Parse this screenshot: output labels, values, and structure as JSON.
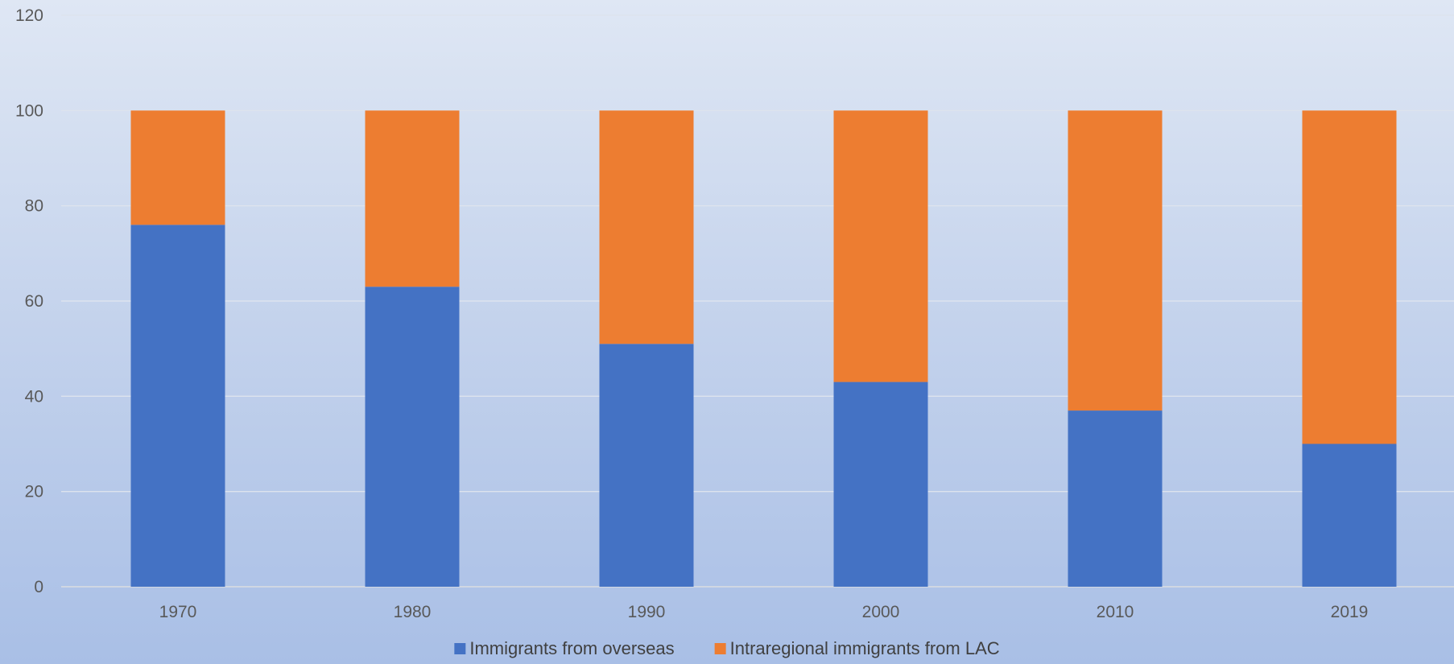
{
  "chart_data": {
    "type": "bar",
    "stacked": true,
    "title": "",
    "xlabel": "",
    "ylabel": "",
    "categories": [
      "1970",
      "1980",
      "1990",
      "2000",
      "2010",
      "2019"
    ],
    "series": [
      {
        "name": "Immigrants from overseas",
        "color": "#4472c4",
        "values": [
          76,
          63,
          51,
          43,
          37,
          30
        ]
      },
      {
        "name": "Intraregional immigrants from LAC",
        "color": "#ed7d31",
        "values": [
          24,
          37,
          49,
          57,
          63,
          70
        ]
      }
    ],
    "ylim": [
      0,
      120
    ],
    "yticks": [
      0,
      20,
      40,
      60,
      80,
      100,
      120
    ],
    "grid": true,
    "legend_position": "bottom"
  }
}
